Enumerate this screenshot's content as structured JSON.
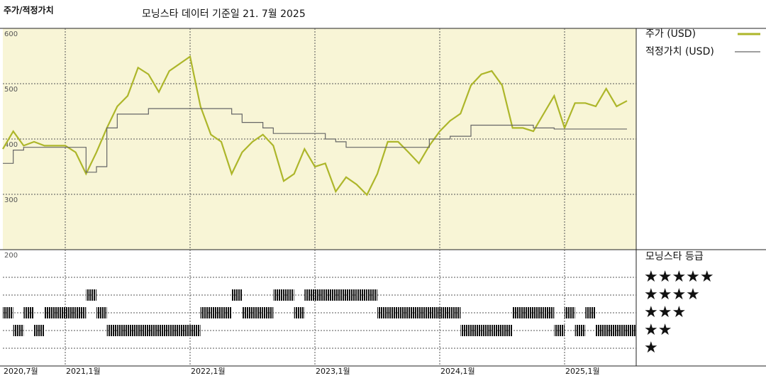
{
  "chart_data": {
    "type": "line",
    "title": "주가/적정가치",
    "subtitle": "모닝스타 데이터 기준일 21. 7월 2025",
    "x": [
      "2020-07",
      "2020-08",
      "2020-09",
      "2020-10",
      "2020-11",
      "2020-12",
      "2021-01",
      "2021-02",
      "2021-03",
      "2021-04",
      "2021-05",
      "2021-06",
      "2021-07",
      "2021-08",
      "2021-09",
      "2021-10",
      "2021-11",
      "2021-12",
      "2022-01",
      "2022-02",
      "2022-03",
      "2022-04",
      "2022-05",
      "2022-06",
      "2022-07",
      "2022-08",
      "2022-09",
      "2022-10",
      "2022-11",
      "2022-12",
      "2023-01",
      "2023-02",
      "2023-03",
      "2023-04",
      "2023-05",
      "2023-06",
      "2023-07",
      "2023-08",
      "2023-09",
      "2023-10",
      "2023-11",
      "2023-12",
      "2024-01",
      "2024-02",
      "2024-03",
      "2024-04",
      "2024-05",
      "2024-06",
      "2024-07",
      "2024-08",
      "2024-09",
      "2024-10",
      "2024-11",
      "2024-12",
      "2025-01",
      "2025-02",
      "2025-03",
      "2025-04",
      "2025-05",
      "2025-06",
      "2025-07"
    ],
    "series": [
      {
        "name": "주가 (USD)",
        "color": "#adb62a",
        "values": [
          382,
          414,
          388,
          395,
          388,
          388,
          388,
          376,
          337,
          376,
          420,
          459,
          478,
          529,
          517,
          485,
          523,
          536,
          549,
          459,
          408,
          395,
          337,
          376,
          395,
          408,
          388,
          324,
          337,
          382,
          350,
          356,
          305,
          331,
          318,
          299,
          337,
          395,
          395,
          376,
          356,
          388,
          414,
          433,
          446,
          497,
          517,
          523,
          497,
          420,
          420,
          414,
          446,
          478,
          420,
          465,
          465,
          459,
          491,
          459,
          469
        ]
      },
      {
        "name": "적정가치 (USD)",
        "color": "#666666",
        "values": [
          356,
          380,
          385,
          385,
          385,
          385,
          385,
          385,
          340,
          350,
          420,
          445,
          445,
          445,
          455,
          455,
          455,
          455,
          455,
          455,
          455,
          455,
          445,
          430,
          430,
          420,
          410,
          410,
          410,
          410,
          410,
          400,
          395,
          385,
          385,
          385,
          385,
          385,
          385,
          385,
          385,
          400,
          400,
          405,
          405,
          425,
          425,
          425,
          425,
          425,
          425,
          420,
          420,
          418,
          418,
          418,
          418,
          418,
          418,
          418,
          418
        ]
      }
    ],
    "ylim": [
      200,
      600
    ],
    "yticks": [
      200,
      300,
      400,
      500,
      600
    ],
    "xticks": [
      {
        "value": "2020-07",
        "label": "2020,7월"
      },
      {
        "value": "2021-01",
        "label": "2021,1월"
      },
      {
        "value": "2022-01",
        "label": "2022,1월"
      },
      {
        "value": "2023-01",
        "label": "2023,1월"
      },
      {
        "value": "2024-01",
        "label": "2024,1월"
      },
      {
        "value": "2025-01",
        "label": "2025,1월"
      }
    ],
    "grid": true,
    "rating": {
      "title": "모닝스타 등급",
      "levels": [
        {
          "value": 5,
          "label": "★★★★★"
        },
        {
          "value": 4,
          "label": "★★★★"
        },
        {
          "value": 3,
          "label": "★★★"
        },
        {
          "value": 2,
          "label": "★★"
        },
        {
          "value": 1,
          "label": "★"
        }
      ],
      "values": [
        3,
        2,
        3,
        2,
        3,
        3,
        3,
        3,
        4,
        3,
        2,
        2,
        2,
        2,
        2,
        2,
        2,
        2,
        2,
        3,
        3,
        3,
        4,
        3,
        3,
        3,
        4,
        4,
        3,
        4,
        4,
        4,
        4,
        4,
        4,
        4,
        3,
        3,
        3,
        3,
        3,
        3,
        3,
        3,
        2,
        2,
        2,
        2,
        2,
        3,
        3,
        3,
        3,
        2,
        3,
        2,
        3,
        2,
        2,
        2,
        2
      ]
    }
  }
}
